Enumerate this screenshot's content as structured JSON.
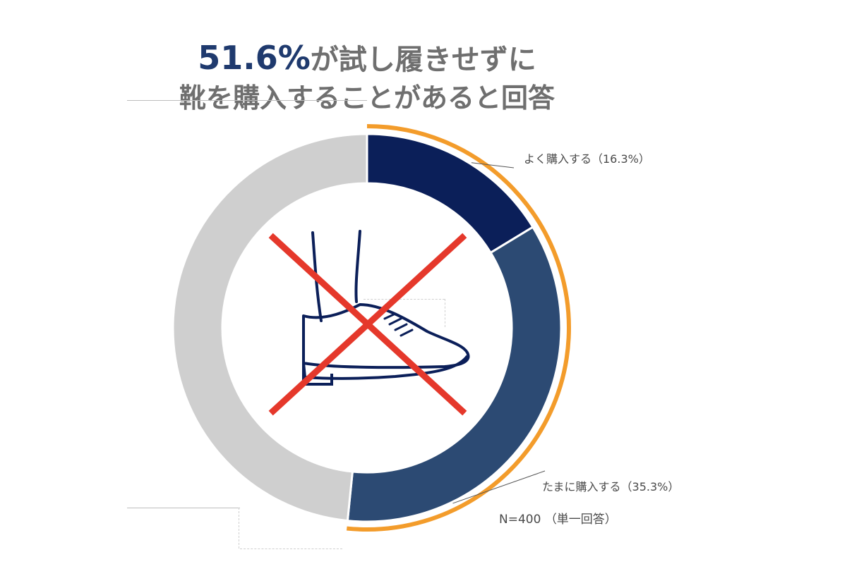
{
  "title": {
    "highlight": "51.6%",
    "line1_rest": "が試し履きせずに",
    "line2": "靴を購入することがあると回答"
  },
  "chart_data": {
    "type": "pie",
    "variant": "donut",
    "unit": "%",
    "slices": [
      {
        "label": "よく購入する（16.3%）",
        "value": 16.3,
        "color": "#0b1f59"
      },
      {
        "label": "たまに購入する（35.3%）",
        "value": 35.3,
        "color": "#2c4a73"
      },
      {
        "label": "",
        "value": 48.4,
        "color": "#cfcfcf"
      }
    ],
    "highlight_arc": {
      "value": 51.6,
      "color": "#f39c2b"
    },
    "center_icon": "shoe-crossed-out-icon"
  },
  "note": "N=400 （単一回答）",
  "colors": {
    "title_accent": "#1f3a6e",
    "cross": "#e5382b",
    "shoe_outline": "#0b1f59"
  }
}
